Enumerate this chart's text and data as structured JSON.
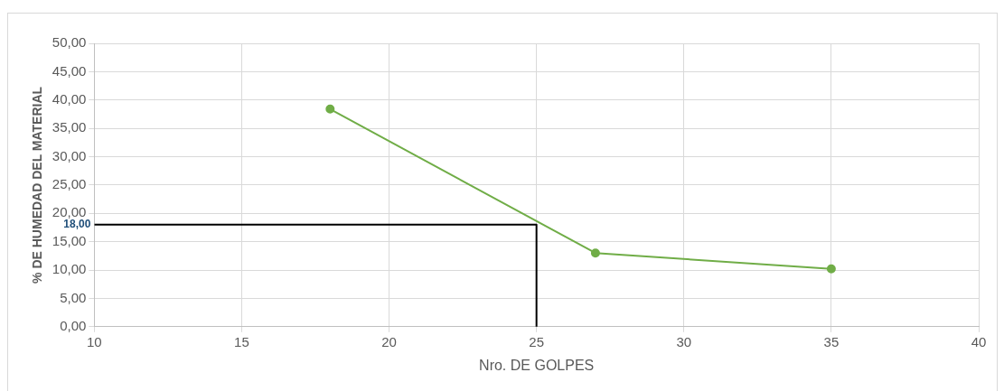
{
  "chart_data": {
    "type": "line",
    "xlabel": "Nro. DE GOLPES",
    "ylabel": "% DE HUMEDAD DEL MATERIAL",
    "series": [
      {
        "color": "#70ad47",
        "x": [
          18,
          27,
          35
        ],
        "values": [
          38.4,
          13.0,
          10.2
        ],
        "marker": "circle"
      },
      {
        "color": "#000000",
        "x": [
          10,
          25,
          25
        ],
        "values": [
          18,
          18,
          0
        ],
        "marker": "none"
      }
    ],
    "xlim": [
      10,
      40
    ],
    "xticks": [
      10,
      15,
      20,
      25,
      30,
      35,
      40
    ],
    "ylim": [
      0,
      50
    ],
    "yticks": [
      {
        "value": 0,
        "label": "0,00"
      },
      {
        "value": 5,
        "label": "5,00"
      },
      {
        "value": 10,
        "label": "10,00"
      },
      {
        "value": 15,
        "label": "15,00"
      },
      {
        "value": 20,
        "label": "20,00"
      },
      {
        "value": 25,
        "label": "25,00"
      },
      {
        "value": 30,
        "label": "30,00"
      },
      {
        "value": 35,
        "label": "35,00"
      },
      {
        "value": 40,
        "label": "40,00"
      },
      {
        "value": 45,
        "label": "45,00"
      },
      {
        "value": 50,
        "label": "50,00"
      }
    ],
    "annotations": [
      {
        "text": "18,00",
        "x": 10,
        "y": 18
      }
    ],
    "grid": true,
    "legend": false
  }
}
